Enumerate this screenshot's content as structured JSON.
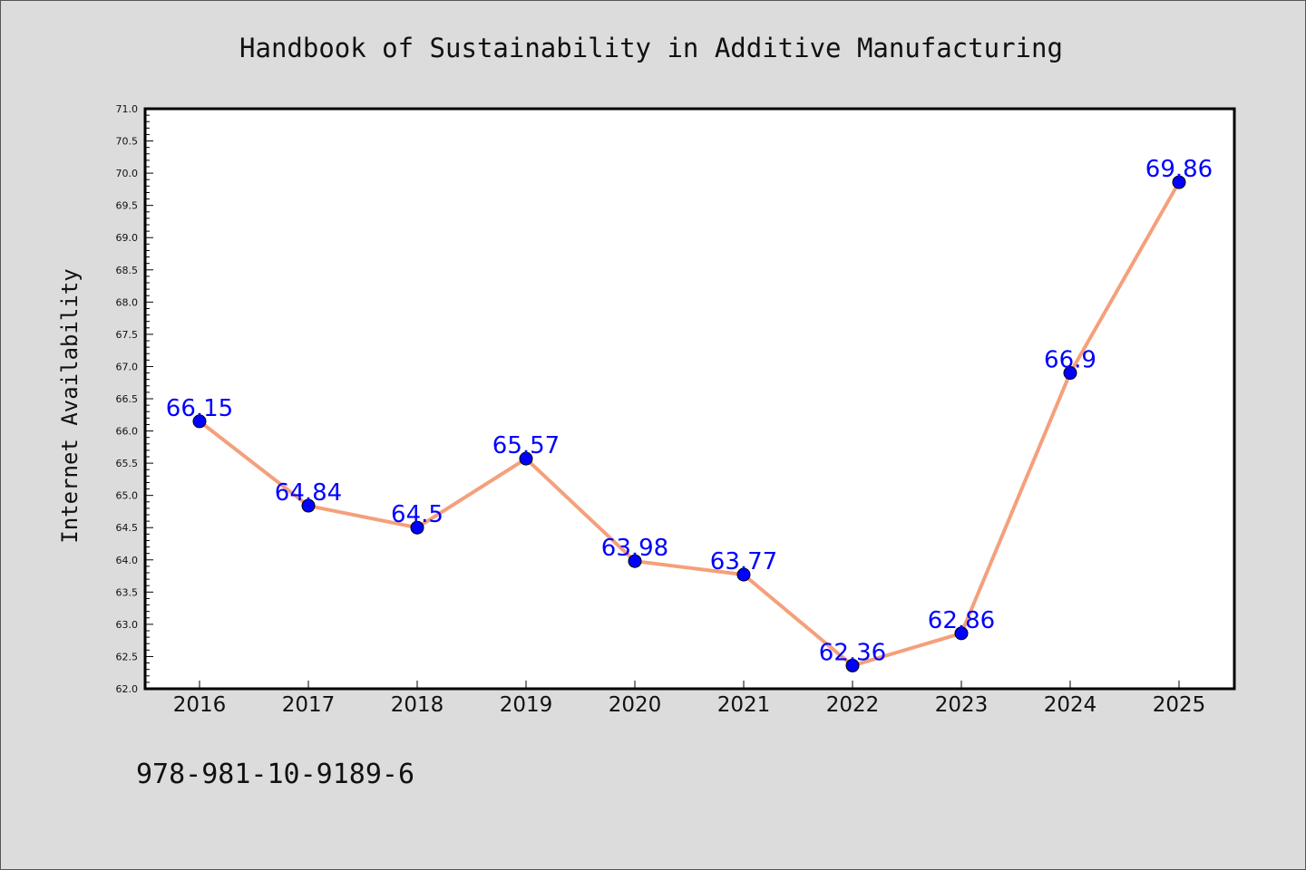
{
  "chart_data": {
    "type": "line",
    "title": "Handbook of Sustainability in Additive Manufacturing",
    "ylabel": "Internet Availability",
    "xlabel": "",
    "categories": [
      "2016",
      "2017",
      "2018",
      "2019",
      "2020",
      "2021",
      "2022",
      "2023",
      "2024",
      "2025"
    ],
    "series": [
      {
        "values": [
          66.15,
          64.84,
          64.5,
          65.57,
          63.98,
          63.77,
          62.36,
          62.86,
          66.9,
          69.86
        ],
        "labels": [
          "66.15",
          "64.84",
          "64.5",
          "65.57",
          "63.98",
          "63.77",
          "62.36",
          "62.86",
          "66.9",
          "69.86"
        ]
      }
    ],
    "ylim": [
      62.0,
      71.0
    ],
    "yticks": [
      "62.0",
      "62.5",
      "63.0",
      "63.5",
      "64.0",
      "64.5",
      "65.0",
      "65.5",
      "66.0",
      "66.5",
      "67.0",
      "67.5",
      "68.0",
      "68.5",
      "69.0",
      "69.5",
      "70.0",
      "70.5",
      "71.0"
    ],
    "grid": false,
    "line_color": "#f4a07c",
    "marker_color": "#0000ff",
    "label_color": "#0000ff",
    "background": "#dcdcdc",
    "plot_background": "#ffffff"
  },
  "footer_note": "978-981-10-9189-6"
}
